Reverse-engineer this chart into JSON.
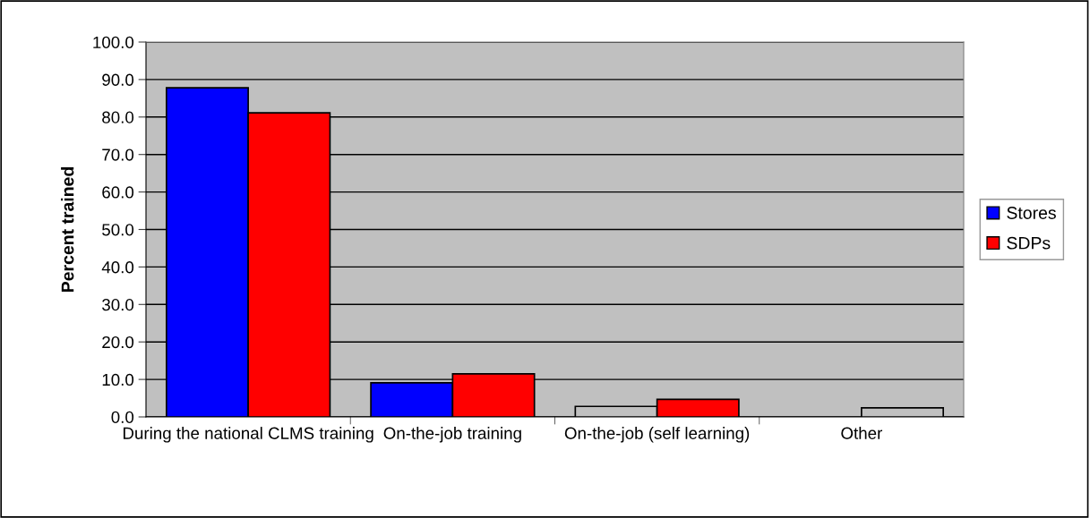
{
  "chart_data": {
    "type": "bar",
    "ylabel": "Percent trained",
    "categories": [
      "During the national CLMS training",
      "On-the-job training",
      "On-the-job (self learning)",
      "Other"
    ],
    "series": [
      {
        "name": "Stores",
        "color": "#0000ff",
        "colors": [
          "#0000ff",
          "#0000ff",
          "#c0c0c0",
          null
        ],
        "values": [
          87.8,
          9.1,
          2.8,
          null
        ]
      },
      {
        "name": "SDPs",
        "color": "#ff0000",
        "colors": [
          "#ff0000",
          "#ff0000",
          "#ff0000",
          "#c0c0c0"
        ],
        "values": [
          81.1,
          11.5,
          4.7,
          2.4
        ]
      }
    ],
    "ylim": [
      0,
      100
    ],
    "yticks": [
      {
        "value": 0,
        "label": "0.0"
      },
      {
        "value": 10,
        "label": "10.0"
      },
      {
        "value": 20,
        "label": "20.0"
      },
      {
        "value": 30,
        "label": "30.0"
      },
      {
        "value": 40,
        "label": "40.0"
      },
      {
        "value": 50,
        "label": "50.0"
      },
      {
        "value": 60,
        "label": "60.0"
      },
      {
        "value": 70,
        "label": "70.0"
      },
      {
        "value": 80,
        "label": "80.0"
      },
      {
        "value": 90,
        "label": "90.0"
      },
      {
        "value": 100,
        "label": "100.0"
      }
    ],
    "grid": "y",
    "legend": "right"
  }
}
